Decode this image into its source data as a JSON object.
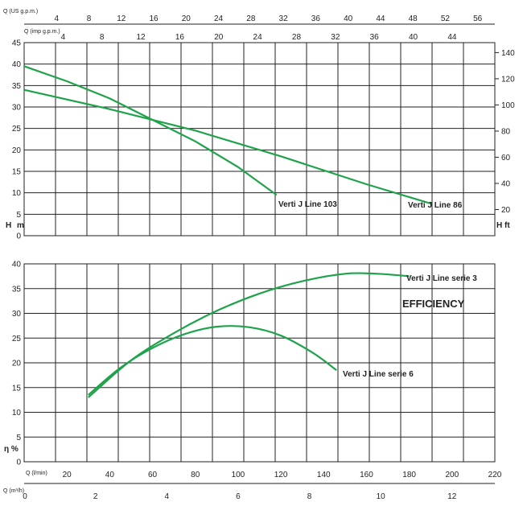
{
  "chart_data": [
    {
      "type": "line",
      "name": "head-chart",
      "x_scale_label": "Q (l/min)",
      "xlim": [
        0,
        220
      ],
      "y_left_label_top": "H",
      "y_left_label_bottom": "m",
      "ylim_left": [
        0,
        45
      ],
      "y_left_ticks": [
        0,
        5,
        10,
        15,
        20,
        25,
        30,
        35,
        40,
        45
      ],
      "y_right_label_top": "H",
      "y_right_label_bottom": "ft",
      "y_right_ticks": [
        20,
        40,
        60,
        80,
        100,
        120,
        140
      ],
      "top_axis_us": {
        "label": "Q (US g.p.m.)",
        "ticks": [
          4,
          8,
          12,
          16,
          20,
          24,
          28,
          32,
          36,
          40,
          44,
          48,
          52,
          56
        ]
      },
      "top_axis_imp": {
        "label": "Q (imp g.p.m.)",
        "ticks": [
          4,
          8,
          12,
          16,
          20,
          24,
          28,
          32,
          36,
          40,
          44
        ]
      },
      "series": [
        {
          "name": "Verti J Line 103",
          "color": "#1fa34a",
          "x": [
            0,
            20,
            40,
            60,
            80,
            100,
            118
          ],
          "y": [
            39.5,
            36,
            32,
            27,
            22,
            16,
            9.5
          ]
        },
        {
          "name": "Verti J Line 86",
          "color": "#1fa34a",
          "x": [
            0,
            40,
            80,
            120,
            160,
            190
          ],
          "y": [
            34,
            29.5,
            24.5,
            18.5,
            12,
            7.5
          ]
        }
      ]
    },
    {
      "type": "line",
      "name": "efficiency-chart",
      "title": "EFFICIENCY",
      "y_label": "η %",
      "ylim": [
        0,
        40
      ],
      "y_ticks": [
        0,
        5,
        10,
        15,
        20,
        25,
        30,
        35,
        40
      ],
      "x_axis_lmin": {
        "label": "Q (l/min)",
        "min": 0,
        "max": 220,
        "ticks": [
          0,
          20,
          40,
          60,
          80,
          100,
          120,
          140,
          160,
          180,
          200,
          220
        ]
      },
      "x_axis_m3h": {
        "label": "Q (m³/h)",
        "min": 0,
        "max": 13.2,
        "ticks": [
          0,
          2,
          4,
          6,
          8,
          10,
          12
        ]
      },
      "series": [
        {
          "name": "Verti J Line serie 3",
          "color": "#1fa34a",
          "x": [
            30,
            50,
            70,
            90,
            110,
            130,
            150,
            165,
            180
          ],
          "y": [
            13,
            20.5,
            26,
            30.5,
            34,
            36.5,
            38,
            38,
            37.5
          ]
        },
        {
          "name": "Verti J Line serie 6",
          "color": "#1fa34a",
          "x": [
            30,
            45,
            60,
            75,
            90,
            105,
            120,
            135,
            146
          ],
          "y": [
            13.5,
            19,
            23,
            25.8,
            27.3,
            27.2,
            25.5,
            22,
            18.5
          ]
        }
      ]
    }
  ]
}
